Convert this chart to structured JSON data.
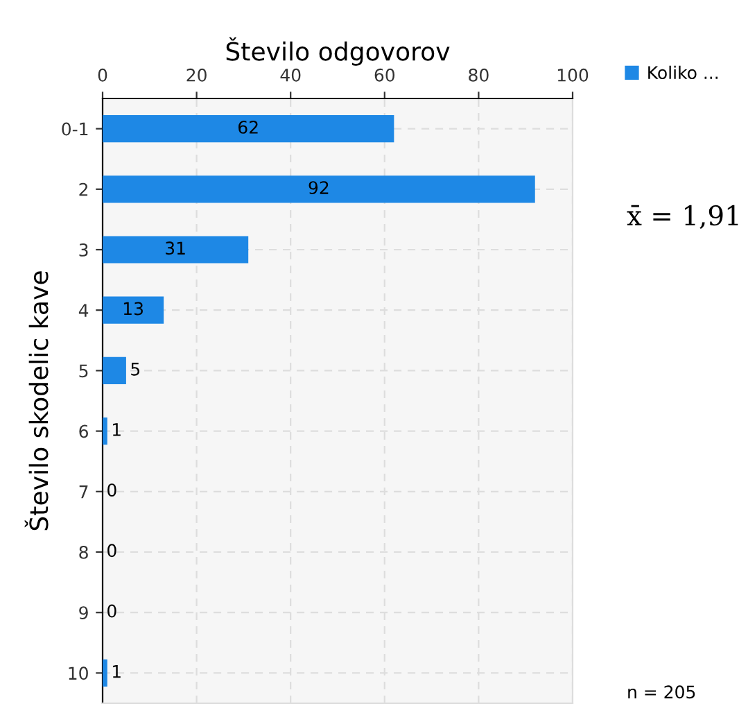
{
  "chart_data": {
    "type": "bar",
    "orientation": "horizontal",
    "xlabel": "Število odgovorov",
    "ylabel": "Število skodelic kave",
    "categories": [
      "0-1",
      "2",
      "3",
      "4",
      "5",
      "6",
      "7",
      "8",
      "9",
      "10"
    ],
    "series": [
      {
        "name": "Koliko ...",
        "color": "#1e88e5",
        "values": [
          62,
          92,
          31,
          13,
          5,
          1,
          0,
          0,
          0,
          1
        ]
      }
    ],
    "xlim": [
      0,
      100
    ],
    "xticks": [
      0,
      20,
      40,
      60,
      80,
      100
    ],
    "grid": true,
    "legend": "top right",
    "data_labels": true,
    "annotations": [
      "x̄ = 1,91",
      "n = 205"
    ]
  }
}
